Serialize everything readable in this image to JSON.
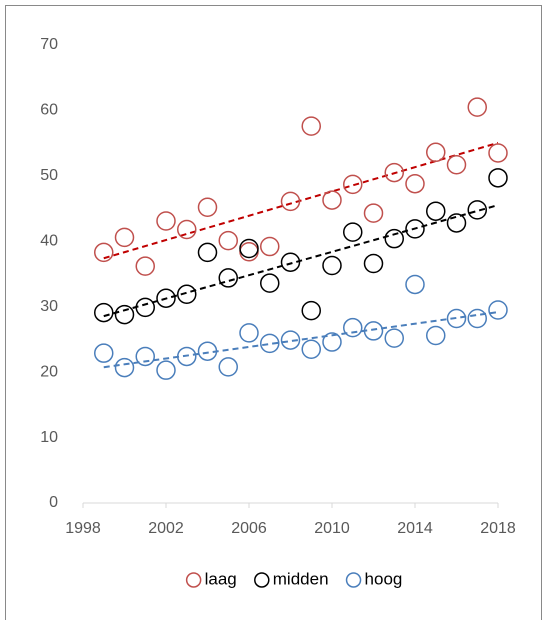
{
  "chart_data": {
    "type": "scatter",
    "x": [
      1999,
      2000,
      2001,
      2002,
      2003,
      2004,
      2005,
      2006,
      2007,
      2008,
      2009,
      2010,
      2011,
      2012,
      2013,
      2014,
      2015,
      2016,
      2017,
      2018
    ],
    "series": [
      {
        "name": "laag",
        "color": "#c0504d",
        "trend_color": "#c00000",
        "values": [
          38.3,
          40.6,
          36.2,
          43.1,
          41.8,
          45.2,
          40.1,
          38.4,
          39.2,
          46.1,
          57.6,
          46.3,
          48.7,
          44.3,
          50.5,
          48.8,
          53.6,
          51.7,
          60.5,
          53.5
        ]
      },
      {
        "name": "midden",
        "color": "#000000",
        "trend_color": "#000000",
        "values": [
          29.1,
          28.8,
          29.9,
          31.3,
          31.9,
          38.3,
          34.4,
          38.9,
          33.6,
          36.8,
          29.4,
          36.3,
          41.4,
          36.6,
          40.4,
          41.9,
          44.6,
          42.8,
          44.8,
          49.7
        ]
      },
      {
        "name": "hoog",
        "color": "#4a7ebb",
        "trend_color": "#4a7ebb",
        "values": [
          22.9,
          20.7,
          22.4,
          20.3,
          22.4,
          23.2,
          20.8,
          26.0,
          24.4,
          24.9,
          23.5,
          24.6,
          26.8,
          26.3,
          25.2,
          33.4,
          25.6,
          28.2,
          28.2,
          29.5
        ]
      }
    ],
    "xlim": [
      1998,
      2018
    ],
    "xticks": [
      1998,
      2002,
      2006,
      2010,
      2014,
      2018
    ],
    "ylim": [
      0,
      70
    ],
    "yticks": [
      0,
      10,
      20,
      30,
      40,
      50,
      60,
      70
    ],
    "trendline": true,
    "legend": "bottom"
  }
}
